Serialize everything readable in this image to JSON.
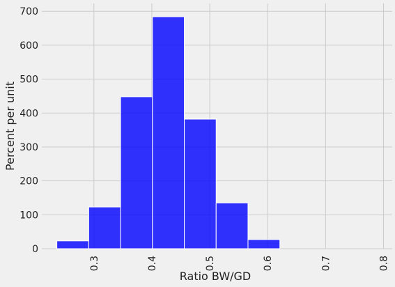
{
  "chart_data": {
    "type": "histogram",
    "x_label": "Ratio BW/GD",
    "y_label": "Percent per unit",
    "bins": [
      0.236,
      0.291,
      0.346,
      0.401,
      0.456,
      0.511,
      0.566,
      0.621
    ],
    "values": [
      23,
      123,
      448,
      684,
      382,
      135,
      27
    ],
    "color": "#0000ff",
    "opacity": 0.8,
    "edgecolor": "#ffffff",
    "xlim": [
      0.21,
      0.815
    ],
    "ylim": [
      0,
      723
    ],
    "xticks": [
      0.3,
      0.4,
      0.5,
      0.6,
      0.7,
      0.8
    ],
    "yticks": [
      0,
      100,
      200,
      300,
      400,
      500,
      600,
      700
    ],
    "grid": true
  }
}
